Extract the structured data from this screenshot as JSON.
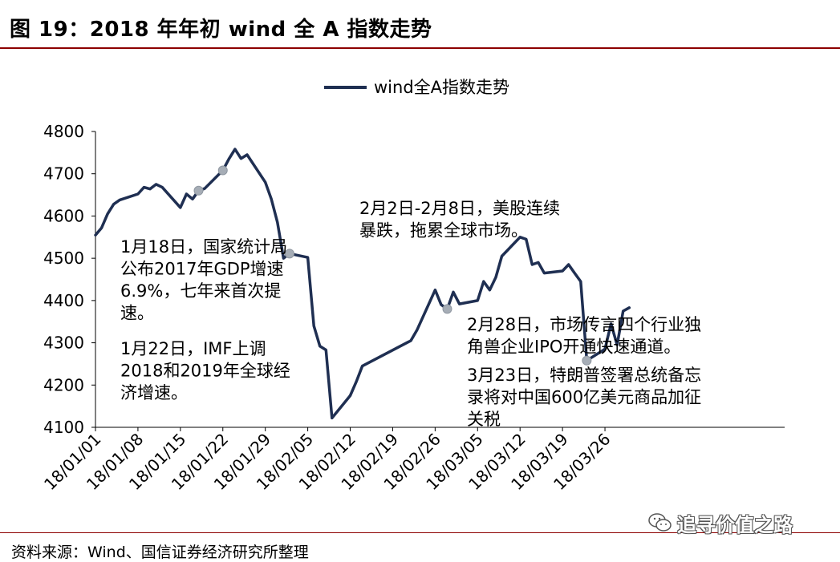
{
  "header": {
    "title": "图  19：2018 年年初 wind 全 A 指数走势"
  },
  "footer": {
    "source": "资料来源：Wind、国信证券经济研究所整理"
  },
  "watermark": {
    "text": "追寻价值之路",
    "icon": "wechat-icon"
  },
  "colors": {
    "line": "#1f2f52",
    "marker": "#a6adb6",
    "title_rule": "#8c0000"
  },
  "chart_data": {
    "type": "line",
    "legend": {
      "label": "wind全A指数走势",
      "position": "top-center"
    },
    "ylim": [
      4100,
      4800
    ],
    "yticks": [
      "4100",
      "4200",
      "4300",
      "4400",
      "4500",
      "4600",
      "4700",
      "4800"
    ],
    "xlim": [
      "2018-01-01",
      "2018-03-31"
    ],
    "xticks": [
      "18/01/01",
      "18/01/08",
      "18/01/15",
      "18/01/22",
      "18/01/29",
      "18/02/05",
      "18/02/12",
      "18/02/19",
      "18/02/26",
      "18/03/05",
      "18/03/12",
      "18/03/19",
      "18/03/26"
    ],
    "grid": false,
    "series": [
      {
        "name": "wind全A指数走势",
        "points": [
          [
            "2018-01-01",
            4555
          ],
          [
            "2018-01-02",
            4572
          ],
          [
            "2018-01-03",
            4605
          ],
          [
            "2018-01-04",
            4628
          ],
          [
            "2018-01-05",
            4638
          ],
          [
            "2018-01-08",
            4652
          ],
          [
            "2018-01-09",
            4668
          ],
          [
            "2018-01-10",
            4664
          ],
          [
            "2018-01-11",
            4675
          ],
          [
            "2018-01-12",
            4668
          ],
          [
            "2018-01-15",
            4620
          ],
          [
            "2018-01-16",
            4652
          ],
          [
            "2018-01-17",
            4640
          ],
          [
            "2018-01-18",
            4660
          ],
          [
            "2018-01-19",
            4665
          ],
          [
            "2018-01-22",
            4708
          ],
          [
            "2018-01-23",
            4735
          ],
          [
            "2018-01-24",
            4758
          ],
          [
            "2018-01-25",
            4736
          ],
          [
            "2018-01-26",
            4745
          ],
          [
            "2018-01-29",
            4680
          ],
          [
            "2018-01-30",
            4640
          ],
          [
            "2018-01-31",
            4585
          ],
          [
            "2018-02-01",
            4500
          ],
          [
            "2018-02-02",
            4511
          ],
          [
            "2018-02-05",
            4502
          ],
          [
            "2018-02-06",
            4340
          ],
          [
            "2018-02-07",
            4292
          ],
          [
            "2018-02-08",
            4283
          ],
          [
            "2018-02-09",
            4122
          ],
          [
            "2018-02-12",
            4175
          ],
          [
            "2018-02-13",
            4208
          ],
          [
            "2018-02-14",
            4245
          ],
          [
            "2018-02-22",
            4305
          ],
          [
            "2018-02-23",
            4330
          ],
          [
            "2018-02-26",
            4425
          ],
          [
            "2018-02-27",
            4390
          ],
          [
            "2018-02-28",
            4380
          ],
          [
            "2018-03-01",
            4420
          ],
          [
            "2018-03-02",
            4392
          ],
          [
            "2018-03-05",
            4400
          ],
          [
            "2018-03-06",
            4445
          ],
          [
            "2018-03-07",
            4425
          ],
          [
            "2018-03-08",
            4455
          ],
          [
            "2018-03-09",
            4505
          ],
          [
            "2018-03-12",
            4550
          ],
          [
            "2018-03-13",
            4545
          ],
          [
            "2018-03-14",
            4485
          ],
          [
            "2018-03-15",
            4490
          ],
          [
            "2018-03-16",
            4465
          ],
          [
            "2018-03-19",
            4470
          ],
          [
            "2018-03-20",
            4485
          ],
          [
            "2018-03-21",
            4465
          ],
          [
            "2018-03-22",
            4445
          ],
          [
            "2018-03-23",
            4258
          ],
          [
            "2018-03-26",
            4285
          ],
          [
            "2018-03-27",
            4345
          ],
          [
            "2018-03-28",
            4295
          ],
          [
            "2018-03-29",
            4375
          ],
          [
            "2018-03-30",
            4383
          ]
        ]
      }
    ],
    "markers": [
      {
        "x": "2018-01-18",
        "y": 4660
      },
      {
        "x": "2018-01-22",
        "y": 4708
      },
      {
        "x": "2018-02-02",
        "y": 4511
      },
      {
        "x": "2018-02-28",
        "y": 4380
      },
      {
        "x": "2018-03-23",
        "y": 4258
      }
    ],
    "annotations": [
      {
        "id": "jan18",
        "lines": [
          "1月18日，国家统计局",
          "公布2017年GDP增速",
          "6.9%，七年来首次提",
          "速。"
        ]
      },
      {
        "id": "jan22",
        "lines": [
          "1月22日，IMF上调",
          "2018和2019年全球经",
          "济增速。"
        ]
      },
      {
        "id": "feb2",
        "lines": [
          "2月2日-2月8日，美股连续",
          "暴跌，拖累全球市场。"
        ]
      },
      {
        "id": "feb28",
        "lines": [
          "2月28日，市场传言四个行业独",
          "角兽企业IPO开通快速通道。"
        ]
      },
      {
        "id": "mar23",
        "lines": [
          "3月23日，特朗普签署总统备忘",
          "录将对中国600亿美元商品加征",
          "关税"
        ]
      }
    ]
  }
}
